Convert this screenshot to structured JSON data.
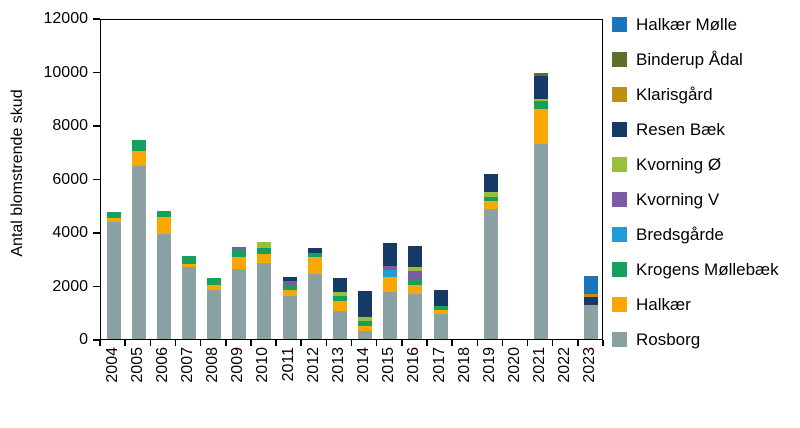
{
  "chart_data": {
    "type": "stacked-bar",
    "title": "",
    "ylabel": "Antal blomstrende skud",
    "xlabel": "",
    "ylim": [
      0,
      12000
    ],
    "yticks": [
      0,
      2000,
      4000,
      6000,
      8000,
      10000,
      12000
    ],
    "grid": false,
    "legend_position": "right",
    "categories": [
      "2004",
      "2005",
      "2006",
      "2007",
      "2008",
      "2009",
      "2010",
      "2011",
      "2012",
      "2013",
      "2014",
      "2015",
      "2016",
      "2017",
      "2018",
      "2019",
      "2020",
      "2021",
      "2022",
      "2023"
    ],
    "series_note": "series listed bottom-to-top of each stacked bar; values estimated from axis (antal blomstrende skud)",
    "series": [
      {
        "name": "Rosborg",
        "color": "#8aa2a4",
        "values": [
          4360,
          6480,
          3925,
          2680,
          1845,
          2620,
          2840,
          1610,
          2430,
          1035,
          310,
          1745,
          1680,
          935,
          0,
          4860,
          0,
          7290,
          0,
          1280
        ]
      },
      {
        "name": "Halkær",
        "color": "#f8a800",
        "values": [
          150,
          560,
          625,
          125,
          175,
          450,
          340,
          225,
          625,
          375,
          185,
          560,
          350,
          150,
          0,
          290,
          0,
          1300,
          0,
          0
        ]
      },
      {
        "name": "Krogens Møllebæk",
        "color": "#16a05d",
        "values": [
          250,
          410,
          250,
          310,
          250,
          250,
          210,
          185,
          160,
          185,
          165,
          0,
          215,
          160,
          0,
          150,
          0,
          290,
          0,
          0
        ]
      },
      {
        "name": "Bredsgårde",
        "color": "#209cd8",
        "values": [
          0,
          0,
          0,
          0,
          0,
          0,
          0,
          0,
          0,
          0,
          0,
          275,
          0,
          0,
          0,
          0,
          0,
          0,
          0,
          0
        ]
      },
      {
        "name": "Kvorning V",
        "color": "#7a5ca5",
        "values": [
          0,
          0,
          0,
          0,
          0,
          130,
          0,
          150,
          0,
          0,
          0,
          160,
          290,
          0,
          0,
          0,
          0,
          0,
          0,
          0
        ]
      },
      {
        "name": "Kvorning Ø",
        "color": "#97c03c",
        "values": [
          0,
          0,
          0,
          0,
          0,
          0,
          250,
          0,
          0,
          150,
          150,
          0,
          150,
          0,
          0,
          185,
          0,
          80,
          0,
          0
        ]
      },
      {
        "name": "Resen Bæk",
        "color": "#163a66",
        "values": [
          0,
          0,
          0,
          0,
          0,
          0,
          0,
          150,
          185,
          535,
          995,
          835,
          805,
          590,
          0,
          685,
          0,
          890,
          0,
          275
        ]
      },
      {
        "name": "Klarisgård",
        "color": "#bf8f0f",
        "values": [
          0,
          0,
          0,
          0,
          0,
          0,
          0,
          0,
          0,
          0,
          0,
          0,
          0,
          0,
          0,
          0,
          0,
          0,
          0,
          125
        ]
      },
      {
        "name": "Binderup Ådal",
        "color": "#5d6f2b",
        "values": [
          0,
          0,
          0,
          0,
          0,
          0,
          0,
          0,
          0,
          0,
          0,
          0,
          0,
          0,
          0,
          0,
          0,
          90,
          0,
          0
        ]
      },
      {
        "name": "Halkær Mølle",
        "color": "#1b75bc",
        "values": [
          0,
          0,
          0,
          0,
          0,
          0,
          0,
          0,
          0,
          0,
          0,
          0,
          0,
          0,
          0,
          0,
          0,
          0,
          0,
          685
        ]
      }
    ],
    "legend": [
      "Halkær Mølle",
      "Binderup Ådal",
      "Klarisgård",
      "Resen Bæk",
      "Kvorning Ø",
      "Kvorning V",
      "Bredsgårde",
      "Krogens Møllebæk",
      "Halkær",
      "Rosborg"
    ]
  }
}
